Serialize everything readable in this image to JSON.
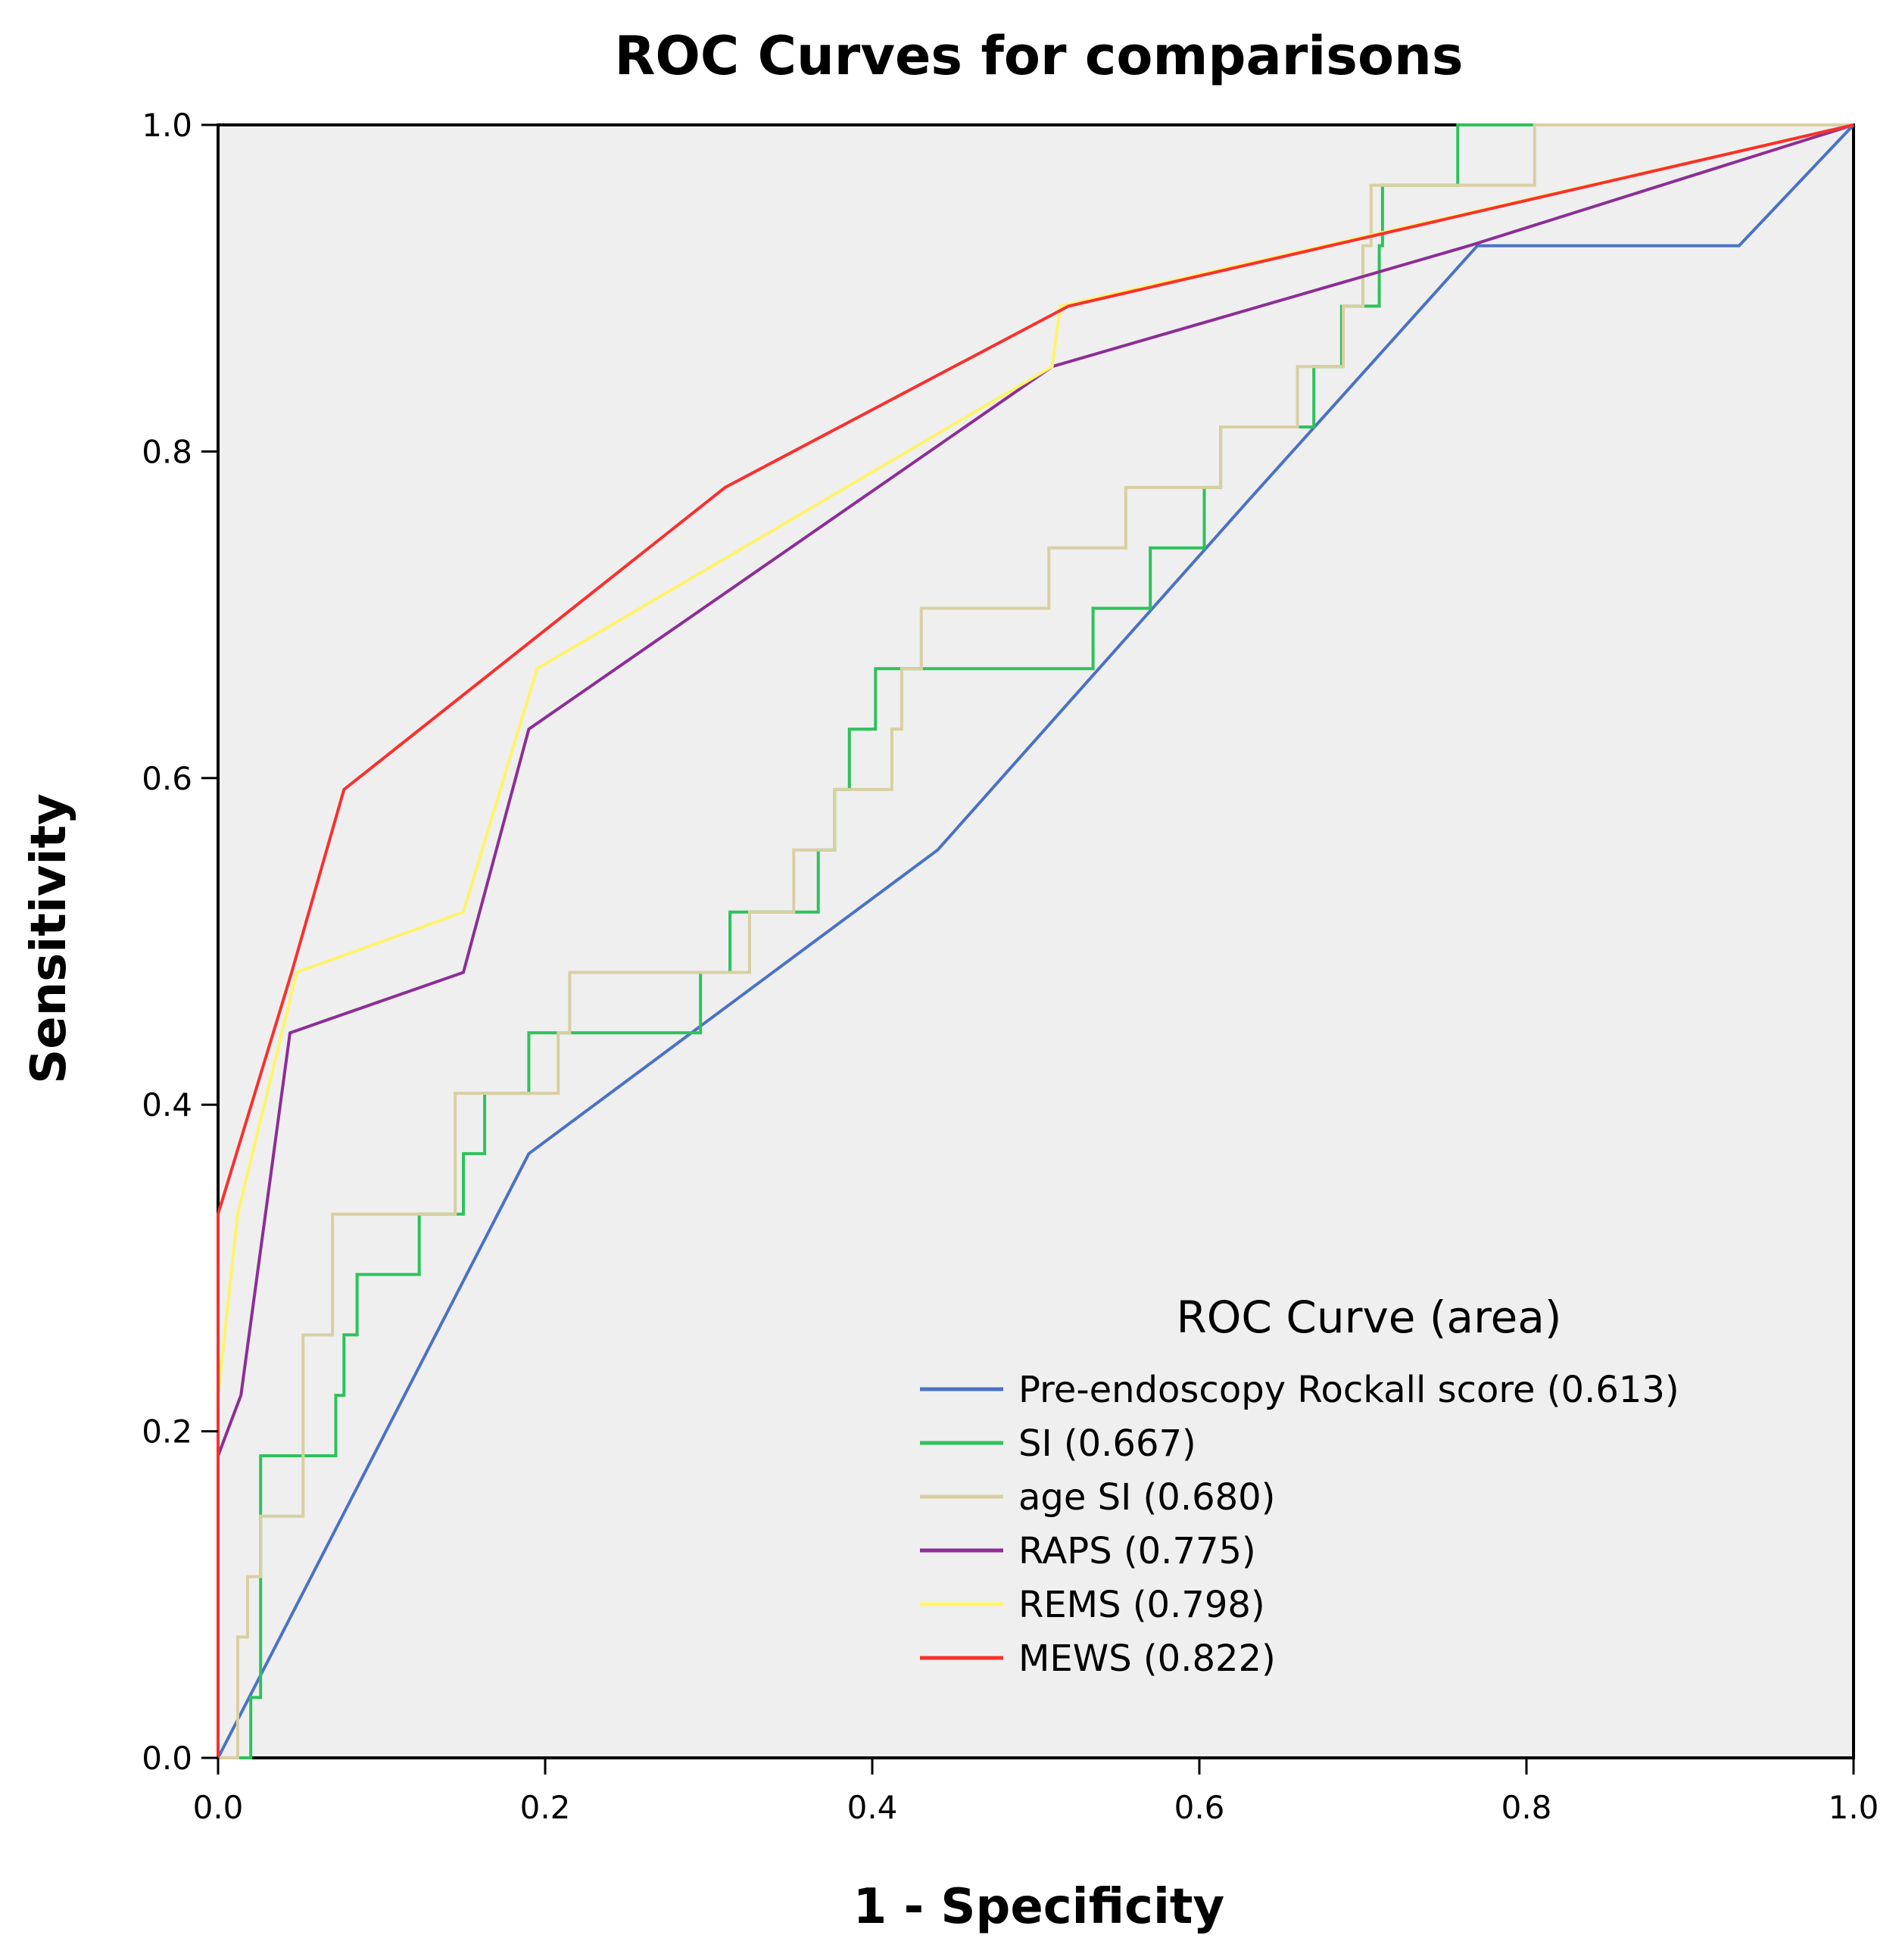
{
  "chart_data": {
    "type": "line",
    "title": "ROC Curves for comparisons",
    "xlabel": "1 - Specificity",
    "ylabel": "Sensitivity",
    "xlim": [
      0,
      1
    ],
    "ylim": [
      0,
      1
    ],
    "xticks": [
      "0.0",
      "0.2",
      "0.4",
      "0.6",
      "0.8",
      "1.0"
    ],
    "yticks": [
      "0.0",
      "0.2",
      "0.4",
      "0.6",
      "0.8",
      "1.0"
    ],
    "legend_title": "ROC Curve (area)",
    "legend_position": "bottom-right",
    "background_color": "#efefef",
    "series": [
      {
        "name": "Pre-endoscopy Rockall score (0.613)",
        "color": "#4a72c4",
        "points": [
          [
            0,
            0
          ],
          [
            0.19,
            0.37
          ],
          [
            0.44,
            0.556
          ],
          [
            0.63,
            0.77
          ],
          [
            0.77,
            0.926
          ],
          [
            0.93,
            0.926
          ],
          [
            1,
            1
          ]
        ]
      },
      {
        "name": "SI (0.667)",
        "color": "#2ec25c",
        "points": [
          [
            0,
            0
          ],
          [
            0.02,
            0
          ],
          [
            0.02,
            0.037
          ],
          [
            0.026,
            0.037
          ],
          [
            0.026,
            0.185
          ],
          [
            0.072,
            0.185
          ],
          [
            0.072,
            0.222
          ],
          [
            0.077,
            0.222
          ],
          [
            0.077,
            0.259
          ],
          [
            0.085,
            0.259
          ],
          [
            0.085,
            0.296
          ],
          [
            0.123,
            0.296
          ],
          [
            0.123,
            0.333
          ],
          [
            0.15,
            0.333
          ],
          [
            0.15,
            0.37
          ],
          [
            0.163,
            0.37
          ],
          [
            0.163,
            0.407
          ],
          [
            0.19,
            0.407
          ],
          [
            0.19,
            0.444
          ],
          [
            0.295,
            0.444
          ],
          [
            0.295,
            0.481
          ],
          [
            0.313,
            0.481
          ],
          [
            0.313,
            0.518
          ],
          [
            0.367,
            0.518
          ],
          [
            0.367,
            0.556
          ],
          [
            0.377,
            0.556
          ],
          [
            0.377,
            0.593
          ],
          [
            0.386,
            0.593
          ],
          [
            0.386,
            0.63
          ],
          [
            0.402,
            0.63
          ],
          [
            0.402,
            0.667
          ],
          [
            0.535,
            0.667
          ],
          [
            0.535,
            0.704
          ],
          [
            0.57,
            0.704
          ],
          [
            0.57,
            0.741
          ],
          [
            0.603,
            0.741
          ],
          [
            0.603,
            0.778
          ],
          [
            0.613,
            0.778
          ],
          [
            0.613,
            0.815
          ],
          [
            0.67,
            0.815
          ],
          [
            0.67,
            0.852
          ],
          [
            0.687,
            0.852
          ],
          [
            0.687,
            0.889
          ],
          [
            0.71,
            0.889
          ],
          [
            0.71,
            0.926
          ],
          [
            0.712,
            0.926
          ],
          [
            0.712,
            0.963
          ],
          [
            0.758,
            0.963
          ],
          [
            0.758,
            1.0
          ],
          [
            1,
            1
          ]
        ]
      },
      {
        "name": "age SI (0.680)",
        "color": "#d8d0a2",
        "points": [
          [
            0,
            0
          ],
          [
            0.012,
            0
          ],
          [
            0.012,
            0.074
          ],
          [
            0.018,
            0.074
          ],
          [
            0.018,
            0.111
          ],
          [
            0.026,
            0.111
          ],
          [
            0.026,
            0.148
          ],
          [
            0.052,
            0.148
          ],
          [
            0.052,
            0.259
          ],
          [
            0.07,
            0.259
          ],
          [
            0.07,
            0.333
          ],
          [
            0.145,
            0.333
          ],
          [
            0.145,
            0.407
          ],
          [
            0.208,
            0.407
          ],
          [
            0.208,
            0.444
          ],
          [
            0.215,
            0.444
          ],
          [
            0.215,
            0.481
          ],
          [
            0.325,
            0.481
          ],
          [
            0.325,
            0.518
          ],
          [
            0.352,
            0.518
          ],
          [
            0.352,
            0.556
          ],
          [
            0.377,
            0.556
          ],
          [
            0.377,
            0.593
          ],
          [
            0.412,
            0.593
          ],
          [
            0.412,
            0.63
          ],
          [
            0.418,
            0.63
          ],
          [
            0.418,
            0.667
          ],
          [
            0.43,
            0.667
          ],
          [
            0.43,
            0.704
          ],
          [
            0.508,
            0.704
          ],
          [
            0.508,
            0.741
          ],
          [
            0.555,
            0.741
          ],
          [
            0.555,
            0.778
          ],
          [
            0.613,
            0.778
          ],
          [
            0.613,
            0.815
          ],
          [
            0.66,
            0.815
          ],
          [
            0.66,
            0.852
          ],
          [
            0.688,
            0.852
          ],
          [
            0.688,
            0.889
          ],
          [
            0.7,
            0.889
          ],
          [
            0.7,
            0.926
          ],
          [
            0.705,
            0.926
          ],
          [
            0.705,
            0.963
          ],
          [
            0.805,
            0.963
          ],
          [
            0.805,
            1.0
          ],
          [
            1,
            1
          ]
        ]
      },
      {
        "name": "RAPS (0.775)",
        "color": "#8c2e96",
        "points": [
          [
            0,
            0
          ],
          [
            0,
            0.185
          ],
          [
            0.014,
            0.222
          ],
          [
            0.044,
            0.444
          ],
          [
            0.15,
            0.481
          ],
          [
            0.19,
            0.63
          ],
          [
            0.51,
            0.852
          ],
          [
            0.765,
            0.926
          ],
          [
            1,
            1
          ]
        ]
      },
      {
        "name": "REMS (0.798)",
        "color": "#fff46a",
        "points": [
          [
            0,
            0
          ],
          [
            0,
            0.222
          ],
          [
            0.012,
            0.333
          ],
          [
            0.048,
            0.481
          ],
          [
            0.15,
            0.518
          ],
          [
            0.195,
            0.667
          ],
          [
            0.51,
            0.852
          ],
          [
            0.515,
            0.889
          ],
          [
            1,
            1
          ]
        ]
      },
      {
        "name": "MEWS (0.822)",
        "color": "#f7312e",
        "points": [
          [
            0,
            0
          ],
          [
            0,
            0.333
          ],
          [
            0.045,
            0.481
          ],
          [
            0.077,
            0.593
          ],
          [
            0.31,
            0.778
          ],
          [
            0.52,
            0.889
          ],
          [
            1,
            1
          ]
        ]
      }
    ]
  }
}
